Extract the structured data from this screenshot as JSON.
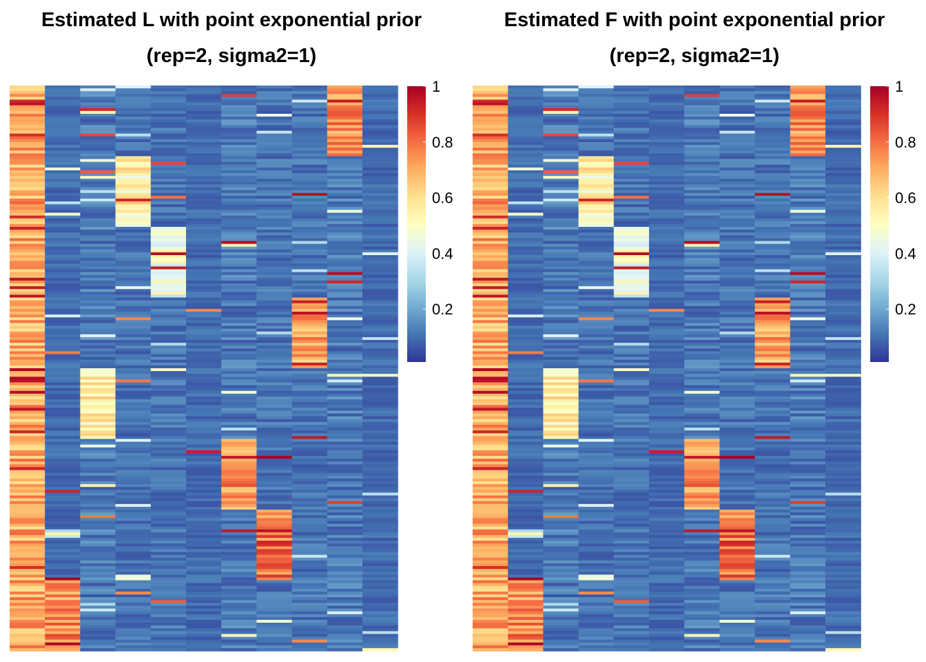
{
  "panels": [
    {
      "title_line1": "Estimated L with point exponential prior",
      "title_line2": "(rep=2, sigma2=1)"
    },
    {
      "title_line1": "Estimated F with point exponential prior",
      "title_line2": "(rep=2, sigma2=1)"
    }
  ],
  "chart_data": [
    {
      "type": "heatmap",
      "title": "Estimated L with point exponential prior (rep=2, sigma2=1)",
      "n_columns": 11,
      "value_range": [
        0,
        1
      ],
      "colorbar": {
        "ticks": [
          1,
          0.8,
          0.6,
          0.4,
          0.2
        ],
        "tick_labels": [
          "1",
          "0.8",
          "0.6",
          "0.4",
          "0.2"
        ],
        "colors": [
          "#313695",
          "#4575b4",
          "#74add1",
          "#abd9e9",
          "#e0f3f8",
          "#ffffbf",
          "#fee090",
          "#fdae61",
          "#f46d43",
          "#d73027",
          "#a50026"
        ]
      },
      "blocks_row_fraction": [
        {
          "column": 1,
          "start": 0.0,
          "end": 1.0,
          "value": 0.7
        },
        {
          "column": 10,
          "start": 0.0,
          "end": 0.125,
          "value": 0.75
        },
        {
          "column": 4,
          "start": 0.125,
          "end": 0.25,
          "value": 0.55
        },
        {
          "column": 5,
          "start": 0.25,
          "end": 0.375,
          "value": 0.45
        },
        {
          "column": 9,
          "start": 0.375,
          "end": 0.5,
          "value": 0.7
        },
        {
          "column": 3,
          "start": 0.5,
          "end": 0.625,
          "value": 0.55
        },
        {
          "column": 7,
          "start": 0.625,
          "end": 0.75,
          "value": 0.75
        },
        {
          "column": 8,
          "start": 0.75,
          "end": 0.875,
          "value": 0.78
        },
        {
          "column": 2,
          "start": 0.875,
          "end": 1.0,
          "value": 0.75
        }
      ]
    },
    {
      "type": "heatmap",
      "title": "Estimated F with point exponential prior (rep=2, sigma2=1)",
      "n_columns": 11,
      "value_range": [
        0,
        1
      ],
      "colorbar": {
        "ticks": [
          1,
          0.8,
          0.6,
          0.4,
          0.2
        ],
        "tick_labels": [
          "1",
          "0.8",
          "0.6",
          "0.4",
          "0.2"
        ],
        "colors": [
          "#313695",
          "#4575b4",
          "#74add1",
          "#abd9e9",
          "#e0f3f8",
          "#ffffbf",
          "#fee090",
          "#fdae61",
          "#f46d43",
          "#d73027",
          "#a50026"
        ]
      },
      "blocks_row_fraction": [
        {
          "column": 1,
          "start": 0.0,
          "end": 1.0,
          "value": 0.7
        },
        {
          "column": 10,
          "start": 0.0,
          "end": 0.125,
          "value": 0.75
        },
        {
          "column": 4,
          "start": 0.125,
          "end": 0.25,
          "value": 0.55
        },
        {
          "column": 5,
          "start": 0.25,
          "end": 0.375,
          "value": 0.45
        },
        {
          "column": 9,
          "start": 0.375,
          "end": 0.5,
          "value": 0.7
        },
        {
          "column": 3,
          "start": 0.5,
          "end": 0.625,
          "value": 0.55
        },
        {
          "column": 7,
          "start": 0.625,
          "end": 0.75,
          "value": 0.75
        },
        {
          "column": 8,
          "start": 0.75,
          "end": 0.875,
          "value": 0.78
        },
        {
          "column": 2,
          "start": 0.875,
          "end": 1.0,
          "value": 0.75
        }
      ]
    }
  ]
}
